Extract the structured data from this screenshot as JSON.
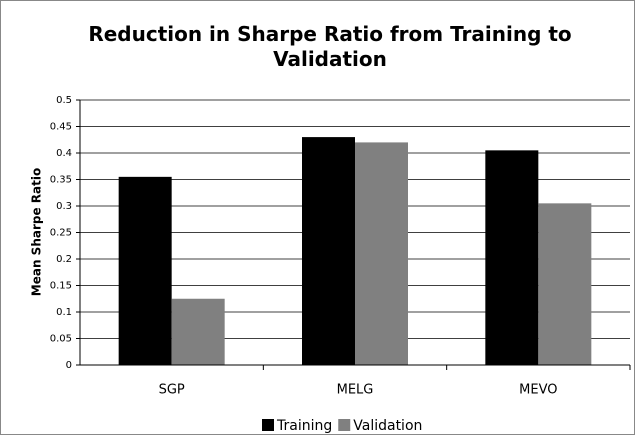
{
  "chart_data": {
    "type": "bar",
    "title": "Reduction in Sharpe Ratio from Training to Validation",
    "y_label": "Mean Sharpe Ratio",
    "categories": [
      "SGP",
      "MELG",
      "MEVO"
    ],
    "series": [
      {
        "name": "Training",
        "color": "#000000",
        "values": [
          0.355,
          0.43,
          0.405
        ]
      },
      {
        "name": "Validation",
        "color": "#808080",
        "values": [
          0.125,
          0.42,
          0.305
        ]
      }
    ],
    "ylim": [
      0,
      0.5
    ],
    "yticks": [
      0,
      0.05,
      0.1,
      0.15,
      0.2,
      0.25,
      0.3,
      0.35,
      0.4,
      0.45,
      0.5
    ],
    "grid": true,
    "legend": "bottom"
  }
}
